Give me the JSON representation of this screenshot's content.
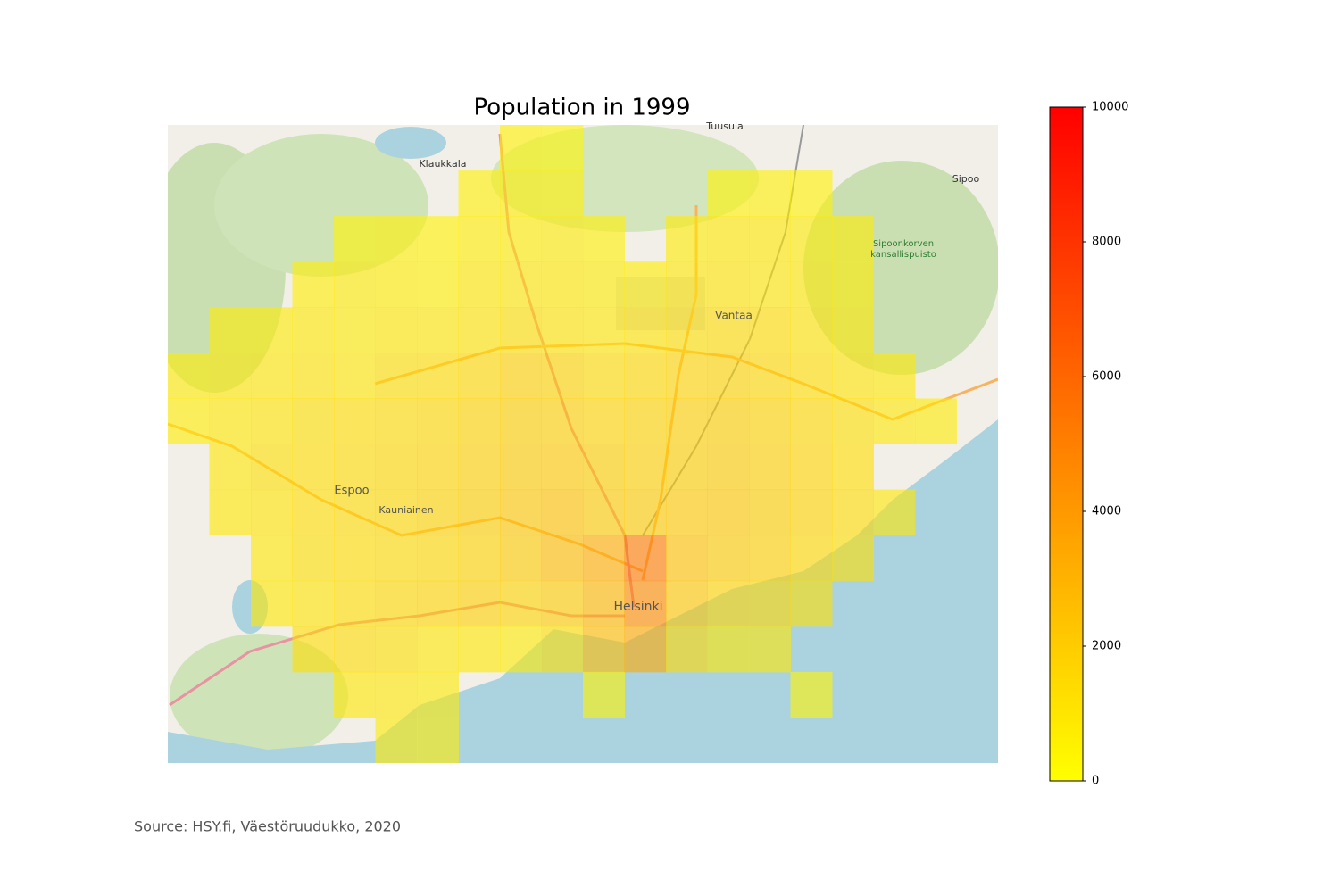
{
  "map": {
    "title": "Population in 1999",
    "source": "Source: HSY.fi, Väestöruudukko, 2020",
    "labels": [
      "Tuusula",
      "Klaukkala",
      "Sipoo",
      "Vantaa",
      "Espoo",
      "Kauniainen",
      "Helsinki",
      "Sipoonkorven",
      "kansallispuisto"
    ],
    "grid": [
      [
        null,
        null,
        null,
        null,
        null,
        null,
        null,
        null,
        500,
        400,
        null,
        null,
        null,
        null,
        null,
        null,
        null,
        null,
        null,
        null
      ],
      [
        null,
        null,
        null,
        null,
        null,
        null,
        null,
        600,
        700,
        600,
        null,
        null,
        null,
        500,
        600,
        500,
        null,
        null,
        null,
        null
      ],
      [
        null,
        null,
        null,
        null,
        500,
        600,
        500,
        700,
        700,
        800,
        600,
        null,
        800,
        900,
        900,
        800,
        700,
        null,
        null,
        null
      ],
      [
        null,
        null,
        null,
        700,
        800,
        700,
        600,
        900,
        1000,
        900,
        800,
        700,
        1000,
        1100,
        1000,
        900,
        800,
        null,
        null,
        null
      ],
      [
        null,
        700,
        800,
        900,
        800,
        900,
        1000,
        1100,
        1200,
        1100,
        1000,
        1100,
        1200,
        1400,
        1300,
        1100,
        900,
        null,
        null,
        null
      ],
      [
        800,
        900,
        1000,
        1100,
        1000,
        1200,
        1300,
        1500,
        1800,
        1700,
        1400,
        1500,
        1600,
        1700,
        1500,
        1300,
        1100,
        900,
        null,
        null
      ],
      [
        700,
        900,
        1100,
        1200,
        1300,
        1400,
        1500,
        1700,
        1900,
        1800,
        1600,
        1700,
        1800,
        1900,
        1700,
        1500,
        1200,
        1000,
        800,
        null
      ],
      [
        null,
        1000,
        1200,
        1300,
        1400,
        1500,
        1600,
        1800,
        2000,
        2100,
        1900,
        1800,
        1900,
        2000,
        1800,
        1600,
        1300,
        null,
        null,
        null
      ],
      [
        null,
        900,
        1100,
        1300,
        1400,
        1500,
        1700,
        1900,
        2200,
        2400,
        2000,
        2000,
        2100,
        2200,
        1900,
        1700,
        1400,
        1000,
        null,
        null
      ],
      [
        null,
        null,
        1000,
        1200,
        1300,
        1400,
        1500,
        1700,
        2000,
        2600,
        3200,
        5200,
        2400,
        2000,
        1800,
        1500,
        1200,
        null,
        null,
        null
      ],
      [
        null,
        null,
        900,
        1100,
        1300,
        1500,
        1600,
        1800,
        1700,
        2000,
        2800,
        4600,
        2200,
        1600,
        1500,
        1300,
        null,
        null,
        null,
        null
      ],
      [
        null,
        null,
        null,
        1300,
        1400,
        1200,
        1000,
        900,
        800,
        1200,
        2600,
        3400,
        1500,
        900,
        1000,
        null,
        null,
        null,
        null,
        null
      ],
      [
        null,
        null,
        null,
        null,
        900,
        1000,
        800,
        null,
        null,
        null,
        500,
        null,
        null,
        null,
        null,
        400,
        null,
        null,
        null,
        null
      ],
      [
        null,
        null,
        null,
        null,
        null,
        800,
        700,
        null,
        null,
        null,
        null,
        null,
        null,
        null,
        null,
        null,
        null,
        null,
        null,
        null
      ]
    ],
    "colorbar": {
      "lim": [
        0,
        10000
      ],
      "ticks": [
        0,
        2000,
        4000,
        6000,
        8000,
        10000
      ]
    }
  }
}
